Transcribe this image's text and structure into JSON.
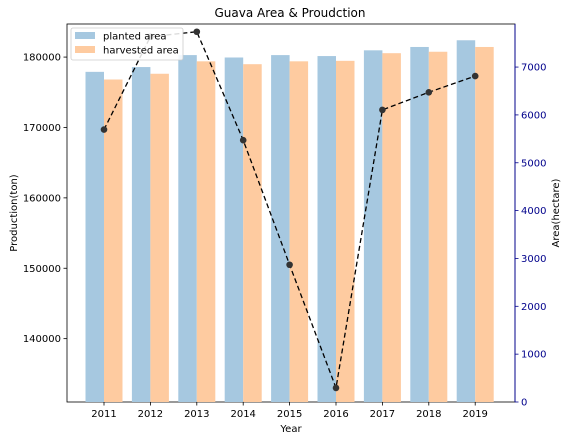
{
  "chart_data": {
    "type": "bar",
    "title": "Guava Area & Proudction",
    "xlabel": "Year",
    "ylabel_left": "Production(ton)",
    "ylabel_right": "Area(hectare)",
    "categories": [
      "2011",
      "2012",
      "2013",
      "2014",
      "2015",
      "2016",
      "2017",
      "2018",
      "2019"
    ],
    "left_axis": {
      "ylim": [
        131000,
        184700
      ],
      "ticks": [
        140000,
        150000,
        160000,
        170000,
        180000
      ],
      "tick_labels": [
        "140000",
        "150000",
        "160000",
        "170000",
        "180000"
      ]
    },
    "right_axis": {
      "ylim": [
        0,
        7900
      ],
      "ticks": [
        0,
        1000,
        2000,
        3000,
        4000,
        5000,
        6000,
        7000
      ],
      "tick_labels": [
        "0",
        "1000",
        "2000",
        "3000",
        "4000",
        "5000",
        "6000",
        "7000"
      ],
      "color": "#00008b"
    },
    "series": [
      {
        "name": "planted area",
        "kind": "bar",
        "axis": "right",
        "color": "#a6c8e0",
        "values": [
          6900,
          7000,
          7250,
          7200,
          7250,
          7230,
          7350,
          7420,
          7560
        ]
      },
      {
        "name": "harvested area",
        "kind": "bar",
        "axis": "right",
        "color": "#fecba0",
        "values": [
          6740,
          6860,
          7120,
          7060,
          7120,
          7130,
          7290,
          7320,
          7420
        ]
      },
      {
        "name": "",
        "kind": "line",
        "axis": "left",
        "color": "#000000",
        "marker_color": "#333333",
        "dashed": true,
        "values": [
          169700,
          182900,
          183600,
          168200,
          150500,
          133000,
          172500,
          175000,
          177300
        ]
      }
    ],
    "legend": {
      "position": "top-left"
    },
    "grid": false
  }
}
